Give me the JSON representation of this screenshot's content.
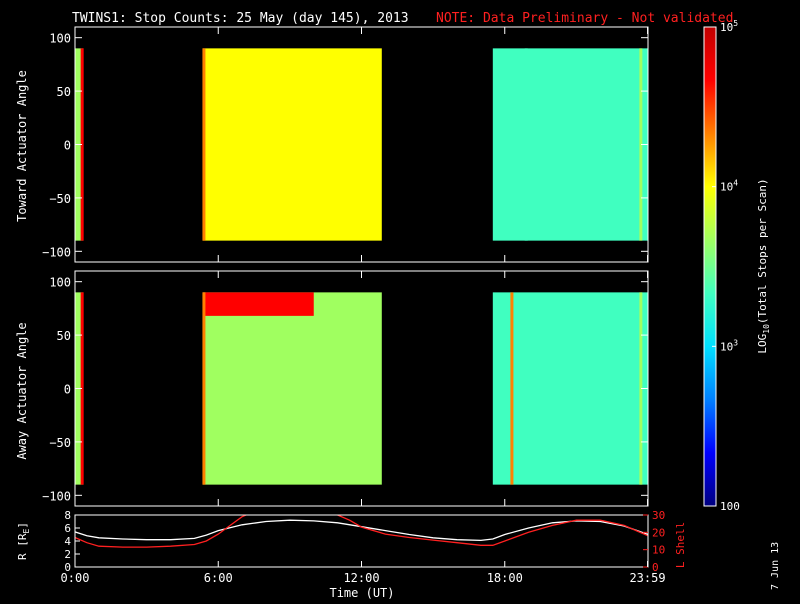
{
  "title": {
    "main": "TWINS1: Stop Counts: 25 May (day 145), 2013",
    "note": "NOTE: Data Preliminary - Not validated",
    "note_color": "#ff2020"
  },
  "date_stamp": "7 Jun 13",
  "colorbar": {
    "label": "LOG",
    "label_sub": "10",
    "label_rest": "(Total Stops per Scan)",
    "ticks": [
      {
        "base": "10",
        "exp": "5",
        "value": 100000
      },
      {
        "base": "10",
        "exp": "4",
        "value": 10000
      },
      {
        "base": "10",
        "exp": "3",
        "value": 1000
      },
      {
        "base": "100",
        "exp": "",
        "value": 100
      }
    ],
    "scale": "log",
    "range": [
      100,
      100000
    ],
    "colormap": [
      "#00007f",
      "#0000ff",
      "#0080ff",
      "#00e0ff",
      "#40ffc0",
      "#a0ff60",
      "#ffff00",
      "#ff8000",
      "#ff0000",
      "#c00000"
    ]
  },
  "chart_data": [
    {
      "type": "heatmap",
      "ylabel": "Toward Actuator Angle",
      "y_ticks": [
        "100",
        "50",
        "0",
        "−50",
        "−100"
      ],
      "y_tick_values": [
        100,
        50,
        0,
        -50,
        -100
      ],
      "ylim": [
        -110,
        110
      ],
      "xlim": [
        0,
        24
      ],
      "y_extent": [
        -90,
        90
      ],
      "segments": [
        {
          "start": 0.0,
          "end": 0.35,
          "log_value": 3.6
        },
        {
          "start": 5.35,
          "end": 12.85,
          "log_value": 3.85
        },
        {
          "start": 17.5,
          "end": 24.0,
          "log_value": 3.2
        }
      ],
      "features": [
        {
          "hour": 0.3,
          "log_value": 4.6
        },
        {
          "hour": 5.4,
          "log_value": 4.3
        },
        {
          "hour": 18.9,
          "log_value": 3.4
        },
        {
          "hour": 23.7,
          "log_value": 3.8
        }
      ]
    },
    {
      "type": "heatmap",
      "ylabel": "Away Actuator Angle",
      "y_ticks": [
        "100",
        "50",
        "0",
        "−50",
        "−100"
      ],
      "y_tick_values": [
        100,
        50,
        0,
        -50,
        -100
      ],
      "ylim": [
        -110,
        110
      ],
      "xlim": [
        0,
        24
      ],
      "y_extent": [
        -90,
        90
      ],
      "segments": [
        {
          "start": 0.0,
          "end": 0.35,
          "log_value": 3.6
        },
        {
          "start": 5.35,
          "end": 12.85,
          "log_value": 3.8
        },
        {
          "start": 17.5,
          "end": 24.0,
          "log_value": 3.2
        }
      ],
      "features": [
        {
          "hour": 0.3,
          "log_value": 4.6
        },
        {
          "hour": 5.4,
          "log_value": 4.3
        },
        {
          "hour": 18.3,
          "log_value": 4.4
        },
        {
          "hour": 23.7,
          "log_value": 3.8
        }
      ],
      "band": {
        "start": 5.35,
        "end": 10.0,
        "y_top": 90,
        "y_bottom": 68,
        "log_value": 4.6
      }
    },
    {
      "type": "line",
      "xlabel": "Time (UT)",
      "x_ticks": [
        "0:00",
        "6:00",
        "12:00",
        "18:00",
        "23:59"
      ],
      "x_tick_values": [
        0,
        6,
        12,
        18,
        23.98
      ],
      "xlim": [
        0,
        24
      ],
      "ylabel_left": "R [R",
      "ylabel_left_sub": "E",
      "ylabel_left_end": "]",
      "ylim_left": [
        0,
        8
      ],
      "y_ticks_left": [
        "0",
        "2",
        "4",
        "6",
        "8"
      ],
      "ylabel_right": "L Shell",
      "ylim_right": [
        0,
        30
      ],
      "y_ticks_right": [
        "0",
        "10",
        "20",
        "30"
      ],
      "series": [
        {
          "axis": "left",
          "color": "#ffffff",
          "x": [
            0,
            0.5,
            1,
            2,
            3,
            4,
            5,
            5.5,
            6,
            7,
            8,
            9,
            10,
            11,
            12,
            13,
            14,
            15,
            16,
            17,
            17.5,
            18,
            19,
            20,
            21,
            22,
            23,
            24
          ],
          "y": [
            5.4,
            4.8,
            4.5,
            4.3,
            4.2,
            4.2,
            4.4,
            4.9,
            5.6,
            6.5,
            7.0,
            7.2,
            7.1,
            6.8,
            6.2,
            5.6,
            5.0,
            4.5,
            4.2,
            4.1,
            4.3,
            5.0,
            6.0,
            6.8,
            7.1,
            7.0,
            6.3,
            5.0
          ]
        },
        {
          "axis": "right",
          "color": "#ff2020",
          "x": [
            0,
            0.5,
            1,
            2,
            3,
            4,
            5,
            5.5,
            6,
            6.5,
            7,
            7.5,
            8,
            9,
            10,
            10.5,
            11,
            11.5,
            12,
            13,
            14,
            15,
            16,
            17,
            17.5,
            18,
            19,
            20,
            21,
            22,
            23,
            24
          ],
          "y": [
            17,
            14,
            12,
            11.5,
            11.5,
            12,
            13,
            15,
            19,
            24,
            29,
            32,
            34,
            34,
            34,
            32,
            30,
            27,
            23,
            19,
            17,
            15.5,
            14,
            12.5,
            12.5,
            15,
            20,
            24,
            27,
            27,
            24,
            18
          ]
        }
      ]
    }
  ]
}
